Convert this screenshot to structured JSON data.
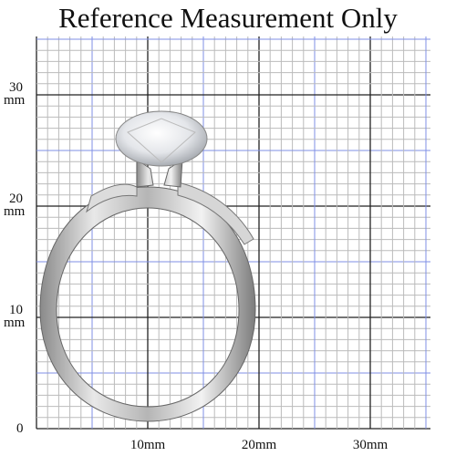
{
  "title": "Reference Measurement Only",
  "y_labels": [
    {
      "number": "30",
      "unit": "mm"
    },
    {
      "number": "20",
      "unit": "mm"
    },
    {
      "number": "10",
      "unit": "mm"
    }
  ],
  "origin_label": "0",
  "x_labels": [
    "10mm",
    "20mm",
    "30mm"
  ]
}
